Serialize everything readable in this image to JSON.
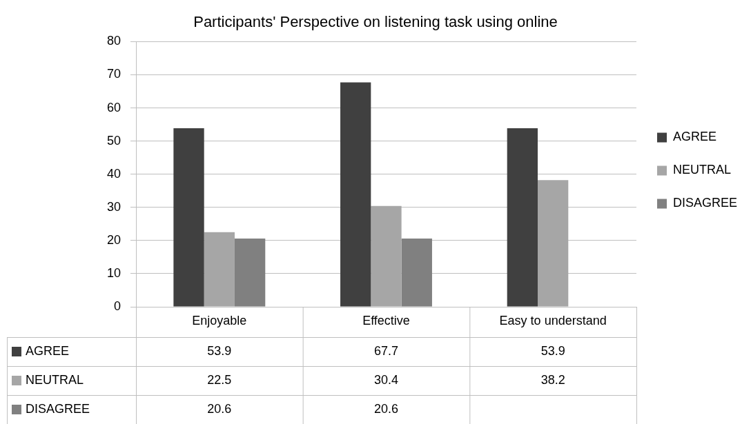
{
  "chart_data": {
    "type": "bar",
    "title": "Participants' Perspective on listening task using online",
    "categories": [
      "Enjoyable",
      "Effective",
      "Easy to understand"
    ],
    "series": [
      {
        "name": "AGREE",
        "color": "#404040",
        "values": [
          53.9,
          67.7,
          53.9
        ]
      },
      {
        "name": "NEUTRAL",
        "color": "#a6a6a6",
        "values": [
          22.5,
          30.4,
          38.2
        ]
      },
      {
        "name": "DISAGREE",
        "color": "#808080",
        "values": [
          20.6,
          20.6,
          null
        ]
      }
    ],
    "ylim": [
      0,
      80
    ],
    "yticks": [
      0,
      10,
      20,
      30,
      40,
      50,
      60,
      70,
      80
    ],
    "grid": "y",
    "legend": "right",
    "data_labels": true
  }
}
